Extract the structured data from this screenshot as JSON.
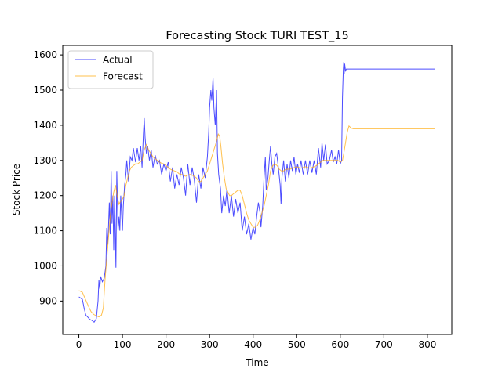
{
  "chart_data": {
    "type": "line",
    "title": "Forecasting Stock TURI TEST_15",
    "xlabel": "Time",
    "ylabel": "Stock Price",
    "xlim": [
      -37,
      856
    ],
    "ylim": [
      805,
      1627
    ],
    "xticks": [
      0,
      100,
      200,
      300,
      400,
      500,
      600,
      700,
      800
    ],
    "yticks": [
      900,
      1000,
      1100,
      1200,
      1300,
      1400,
      1500,
      1600
    ],
    "grid": false,
    "legend_position": "upper-left",
    "series": [
      {
        "name": "Actual",
        "color": "#0000ff",
        "points": [
          [
            0,
            912
          ],
          [
            8,
            905
          ],
          [
            12,
            880
          ],
          [
            16,
            860
          ],
          [
            20,
            855
          ],
          [
            25,
            848
          ],
          [
            30,
            845
          ],
          [
            35,
            840
          ],
          [
            40,
            850
          ],
          [
            44,
            900
          ],
          [
            46,
            960
          ],
          [
            48,
            935
          ],
          [
            50,
            970
          ],
          [
            54,
            955
          ],
          [
            58,
            965
          ],
          [
            62,
            1000
          ],
          [
            64,
            1108
          ],
          [
            66,
            1060
          ],
          [
            68,
            1110
          ],
          [
            70,
            1180
          ],
          [
            72,
            1090
          ],
          [
            74,
            1270
          ],
          [
            76,
            1120
          ],
          [
            78,
            1200
          ],
          [
            80,
            1045
          ],
          [
            82,
            1200
          ],
          [
            85,
            995
          ],
          [
            87,
            1270
          ],
          [
            90,
            1100
          ],
          [
            92,
            1140
          ],
          [
            94,
            1100
          ],
          [
            96,
            1200
          ],
          [
            100,
            1100
          ],
          [
            102,
            1170
          ],
          [
            105,
            1230
          ],
          [
            108,
            1260
          ],
          [
            110,
            1300
          ],
          [
            114,
            1240
          ],
          [
            118,
            1310
          ],
          [
            122,
            1300
          ],
          [
            125,
            1335
          ],
          [
            130,
            1295
          ],
          [
            134,
            1335
          ],
          [
            138,
            1300
          ],
          [
            142,
            1340
          ],
          [
            145,
            1280
          ],
          [
            148,
            1375
          ],
          [
            150,
            1420
          ],
          [
            152,
            1365
          ],
          [
            155,
            1320
          ],
          [
            158,
            1340
          ],
          [
            162,
            1300
          ],
          [
            166,
            1330
          ],
          [
            170,
            1280
          ],
          [
            175,
            1315
          ],
          [
            180,
            1290
          ],
          [
            185,
            1300
          ],
          [
            190,
            1260
          ],
          [
            195,
            1290
          ],
          [
            200,
            1270
          ],
          [
            205,
            1295
          ],
          [
            210,
            1240
          ],
          [
            215,
            1280
          ],
          [
            220,
            1220
          ],
          [
            225,
            1260
          ],
          [
            230,
            1230
          ],
          [
            235,
            1280
          ],
          [
            240,
            1250
          ],
          [
            245,
            1200
          ],
          [
            250,
            1290
          ],
          [
            255,
            1230
          ],
          [
            260,
            1280
          ],
          [
            265,
            1245
          ],
          [
            270,
            1180
          ],
          [
            275,
            1260
          ],
          [
            280,
            1220
          ],
          [
            285,
            1280
          ],
          [
            290,
            1250
          ],
          [
            295,
            1310
          ],
          [
            298,
            1380
          ],
          [
            300,
            1450
          ],
          [
            303,
            1500
          ],
          [
            305,
            1470
          ],
          [
            308,
            1535
          ],
          [
            310,
            1450
          ],
          [
            313,
            1400
          ],
          [
            316,
            1500
          ],
          [
            318,
            1320
          ],
          [
            321,
            1260
          ],
          [
            325,
            1220
          ],
          [
            328,
            1150
          ],
          [
            332,
            1200
          ],
          [
            336,
            1170
          ],
          [
            340,
            1220
          ],
          [
            345,
            1150
          ],
          [
            350,
            1200
          ],
          [
            355,
            1140
          ],
          [
            360,
            1190
          ],
          [
            365,
            1150
          ],
          [
            370,
            1180
          ],
          [
            375,
            1100
          ],
          [
            380,
            1140
          ],
          [
            385,
            1090
          ],
          [
            390,
            1120
          ],
          [
            395,
            1075
          ],
          [
            400,
            1110
          ],
          [
            404,
            1090
          ],
          [
            408,
            1140
          ],
          [
            412,
            1180
          ],
          [
            416,
            1150
          ],
          [
            418,
            1110
          ],
          [
            422,
            1170
          ],
          [
            425,
            1250
          ],
          [
            428,
            1310
          ],
          [
            430,
            1215
          ],
          [
            434,
            1250
          ],
          [
            437,
            1300
          ],
          [
            440,
            1340
          ],
          [
            443,
            1290
          ],
          [
            446,
            1260
          ],
          [
            450,
            1310
          ],
          [
            454,
            1320
          ],
          [
            458,
            1280
          ],
          [
            462,
            1230
          ],
          [
            464,
            1175
          ],
          [
            466,
            1250
          ],
          [
            470,
            1300
          ],
          [
            474,
            1240
          ],
          [
            478,
            1290
          ],
          [
            482,
            1250
          ],
          [
            486,
            1300
          ],
          [
            490,
            1270
          ],
          [
            494,
            1310
          ],
          [
            498,
            1260
          ],
          [
            502,
            1290
          ],
          [
            506,
            1265
          ],
          [
            510,
            1300
          ],
          [
            515,
            1260
          ],
          [
            520,
            1300
          ],
          [
            525,
            1260
          ],
          [
            530,
            1300
          ],
          [
            535,
            1265
          ],
          [
            540,
            1300
          ],
          [
            545,
            1260
          ],
          [
            550,
            1335
          ],
          [
            555,
            1280
          ],
          [
            558,
            1350
          ],
          [
            562,
            1300
          ],
          [
            566,
            1345
          ],
          [
            570,
            1290
          ],
          [
            575,
            1300
          ],
          [
            580,
            1330
          ],
          [
            584,
            1295
          ],
          [
            588,
            1310
          ],
          [
            592,
            1290
          ],
          [
            596,
            1330
          ],
          [
            600,
            1290
          ],
          [
            603,
            1300
          ],
          [
            605,
            1480
          ],
          [
            607,
            1560
          ],
          [
            608,
            1580
          ],
          [
            609,
            1545
          ],
          [
            610,
            1575
          ],
          [
            612,
            1555
          ],
          [
            614,
            1560
          ],
          [
            620,
            1560
          ],
          [
            700,
            1560
          ],
          [
            818,
            1560
          ]
        ]
      },
      {
        "name": "Forecast",
        "color": "#ffa500",
        "points": [
          [
            0,
            930
          ],
          [
            8,
            925
          ],
          [
            15,
            905
          ],
          [
            22,
            885
          ],
          [
            28,
            870
          ],
          [
            34,
            862
          ],
          [
            40,
            858
          ],
          [
            46,
            855
          ],
          [
            52,
            860
          ],
          [
            56,
            880
          ],
          [
            60,
            960
          ],
          [
            64,
            1020
          ],
          [
            68,
            1080
          ],
          [
            72,
            1140
          ],
          [
            76,
            1180
          ],
          [
            80,
            1210
          ],
          [
            84,
            1230
          ],
          [
            88,
            1200
          ],
          [
            92,
            1175
          ],
          [
            96,
            1185
          ],
          [
            100,
            1190
          ],
          [
            104,
            1200
          ],
          [
            108,
            1230
          ],
          [
            112,
            1250
          ],
          [
            116,
            1270
          ],
          [
            120,
            1280
          ],
          [
            125,
            1285
          ],
          [
            130,
            1290
          ],
          [
            135,
            1290
          ],
          [
            140,
            1295
          ],
          [
            145,
            1300
          ],
          [
            150,
            1330
          ],
          [
            155,
            1345
          ],
          [
            160,
            1330
          ],
          [
            165,
            1320
          ],
          [
            170,
            1310
          ],
          [
            175,
            1305
          ],
          [
            180,
            1300
          ],
          [
            185,
            1295
          ],
          [
            190,
            1292
          ],
          [
            195,
            1290
          ],
          [
            200,
            1285
          ],
          [
            205,
            1280
          ],
          [
            210,
            1275
          ],
          [
            215,
            1272
          ],
          [
            220,
            1270
          ],
          [
            225,
            1268
          ],
          [
            230,
            1262
          ],
          [
            235,
            1260
          ],
          [
            240,
            1258
          ],
          [
            245,
            1255
          ],
          [
            250,
            1258
          ],
          [
            255,
            1260
          ],
          [
            260,
            1258
          ],
          [
            265,
            1255
          ],
          [
            270,
            1250
          ],
          [
            275,
            1240
          ],
          [
            280,
            1240
          ],
          [
            285,
            1250
          ],
          [
            290,
            1260
          ],
          [
            295,
            1270
          ],
          [
            300,
            1290
          ],
          [
            305,
            1310
          ],
          [
            310,
            1330
          ],
          [
            315,
            1350
          ],
          [
            320,
            1375
          ],
          [
            323,
            1370
          ],
          [
            326,
            1340
          ],
          [
            330,
            1290
          ],
          [
            334,
            1250
          ],
          [
            338,
            1220
          ],
          [
            342,
            1210
          ],
          [
            346,
            1200
          ],
          [
            350,
            1200
          ],
          [
            355,
            1205
          ],
          [
            360,
            1210
          ],
          [
            365,
            1215
          ],
          [
            370,
            1215
          ],
          [
            375,
            1200
          ],
          [
            380,
            1175
          ],
          [
            385,
            1150
          ],
          [
            390,
            1130
          ],
          [
            395,
            1120
          ],
          [
            400,
            1110
          ],
          [
            405,
            1110
          ],
          [
            410,
            1115
          ],
          [
            415,
            1130
          ],
          [
            420,
            1150
          ],
          [
            425,
            1170
          ],
          [
            430,
            1200
          ],
          [
            435,
            1230
          ],
          [
            440,
            1270
          ],
          [
            445,
            1285
          ],
          [
            450,
            1290
          ],
          [
            455,
            1285
          ],
          [
            460,
            1275
          ],
          [
            465,
            1270
          ],
          [
            470,
            1270
          ],
          [
            475,
            1275
          ],
          [
            480,
            1275
          ],
          [
            485,
            1275
          ],
          [
            490,
            1278
          ],
          [
            495,
            1280
          ],
          [
            500,
            1282
          ],
          [
            505,
            1280
          ],
          [
            510,
            1278
          ],
          [
            515,
            1280
          ],
          [
            520,
            1282
          ],
          [
            525,
            1280
          ],
          [
            530,
            1278
          ],
          [
            535,
            1280
          ],
          [
            540,
            1282
          ],
          [
            545,
            1285
          ],
          [
            550,
            1290
          ],
          [
            555,
            1295
          ],
          [
            560,
            1300
          ],
          [
            565,
            1300
          ],
          [
            570,
            1300
          ],
          [
            575,
            1300
          ],
          [
            580,
            1300
          ],
          [
            585,
            1300
          ],
          [
            590,
            1300
          ],
          [
            595,
            1300
          ],
          [
            600,
            1295
          ],
          [
            605,
            1300
          ],
          [
            608,
            1320
          ],
          [
            612,
            1350
          ],
          [
            616,
            1380
          ],
          [
            620,
            1398
          ],
          [
            625,
            1392
          ],
          [
            630,
            1390
          ],
          [
            700,
            1390
          ],
          [
            818,
            1390
          ]
        ]
      }
    ]
  }
}
